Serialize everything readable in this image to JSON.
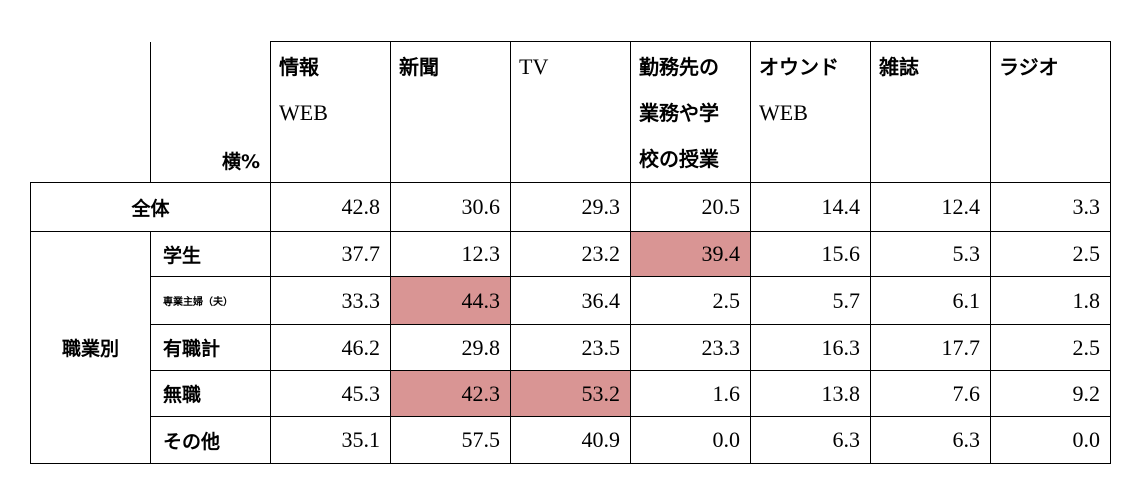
{
  "table": {
    "corner_label": "横%",
    "columns": [
      {
        "lines": [
          "情報",
          "WEB"
        ]
      },
      {
        "lines": [
          "新聞"
        ]
      },
      {
        "lines": [
          "TV"
        ]
      },
      {
        "lines": [
          "勤務先の",
          "業務や学",
          "校の授業"
        ]
      },
      {
        "lines": [
          "オウンド",
          "WEB"
        ]
      },
      {
        "lines": [
          "雑誌"
        ]
      },
      {
        "lines": [
          "ラジオ"
        ]
      }
    ],
    "total": {
      "label": "全体",
      "values": [
        "42.8",
        "30.6",
        "29.3",
        "20.5",
        "14.4",
        "12.4",
        "3.3"
      ]
    },
    "group_label": "職業別",
    "rows": [
      {
        "label": "学生",
        "values": [
          "37.7",
          "12.3",
          "23.2",
          "39.4",
          "15.6",
          "5.3",
          "2.5"
        ],
        "highlight": [
          3
        ]
      },
      {
        "label": "専業主婦（夫）",
        "values": [
          "33.3",
          "44.3",
          "36.4",
          "2.5",
          "5.7",
          "6.1",
          "1.8"
        ],
        "highlight": [
          1
        ]
      },
      {
        "label": "有職計",
        "values": [
          "46.2",
          "29.8",
          "23.5",
          "23.3",
          "16.3",
          "17.7",
          "2.5"
        ],
        "highlight": []
      },
      {
        "label": "無職",
        "values": [
          "45.3",
          "42.3",
          "53.2",
          "1.6",
          "13.8",
          "7.6",
          "9.2"
        ],
        "highlight": [
          1,
          2
        ]
      },
      {
        "label": "その他",
        "values": [
          "35.1",
          "57.5",
          "40.9",
          "0.0",
          "6.3",
          "6.3",
          "0.0"
        ],
        "highlight": []
      }
    ],
    "highlight_color": "#d99594"
  }
}
